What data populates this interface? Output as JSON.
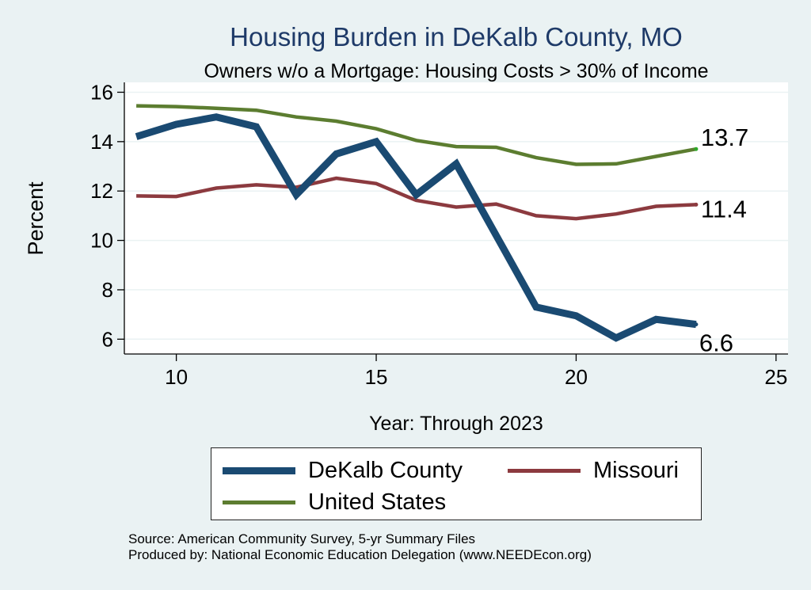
{
  "chart_data": {
    "type": "line",
    "title": "Housing Burden in DeKalb County, MO",
    "subtitle": "Owners w/o a Mortgage: Housing Costs > 30% of Income",
    "xlabel": "Year: Through 2023",
    "ylabel": "Percent",
    "xlim": [
      8.7,
      25.3
    ],
    "ylim": [
      5.4,
      16.4
    ],
    "xticks": [
      10,
      15,
      20,
      25
    ],
    "yticks": [
      6,
      8,
      10,
      12,
      14,
      16
    ],
    "grid": true,
    "x": [
      9,
      10,
      11,
      12,
      13,
      14,
      15,
      16,
      17,
      18,
      19,
      20,
      21,
      22,
      23
    ],
    "series": [
      {
        "name": "DeKalb County",
        "color": "#1a4a72",
        "values": [
          14.2,
          14.7,
          15.0,
          14.6,
          11.85,
          13.5,
          14.0,
          11.85,
          13.1,
          10.2,
          7.3,
          6.95,
          6.05,
          6.8,
          6.6
        ],
        "end_label": "6.6"
      },
      {
        "name": "Missouri",
        "color": "#8c3a3f",
        "values": [
          11.8,
          11.78,
          12.12,
          12.25,
          12.15,
          12.52,
          12.3,
          11.62,
          11.35,
          11.47,
          11.0,
          10.88,
          11.07,
          11.38,
          11.45
        ],
        "end_label": "11.4"
      },
      {
        "name": "United States",
        "color": "#5c7d30",
        "values": [
          15.45,
          15.42,
          15.35,
          15.27,
          15.0,
          14.83,
          14.52,
          14.05,
          13.8,
          13.77,
          13.35,
          13.08,
          13.1,
          13.4,
          13.7
        ],
        "end_label": "13.7"
      }
    ],
    "legend": {
      "position": "bottom",
      "entries": [
        "DeKalb County",
        "Missouri",
        "United States"
      ]
    }
  },
  "footer": {
    "source": "Source: American Community Survey, 5-yr Summary Files",
    "produced": "Produced by: National Economic Education Delegation (www.NEEDEcon.org)"
  }
}
